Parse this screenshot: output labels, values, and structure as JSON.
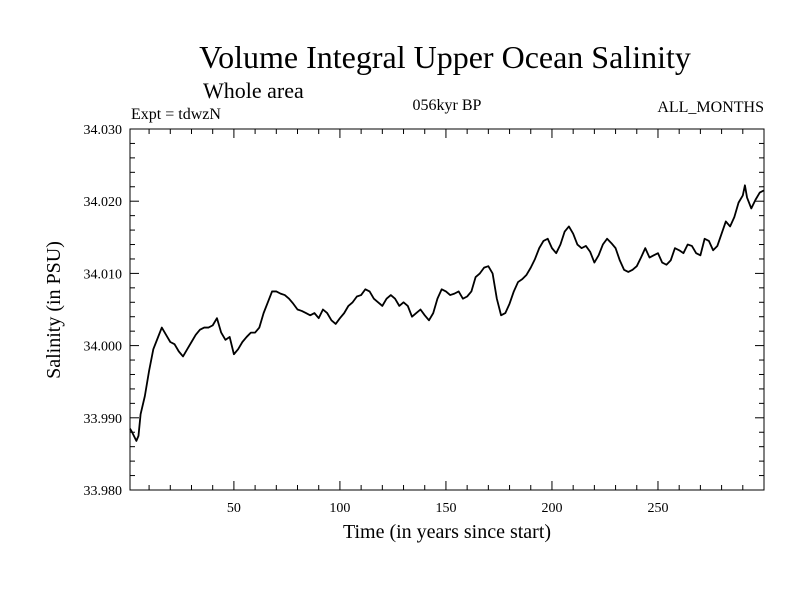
{
  "chart_data": {
    "type": "line",
    "title": "Volume Integral Upper Ocean Salinity",
    "subtitle": "Whole area",
    "annotations": {
      "left": "Expt = tdwzN",
      "center": "056kyr BP",
      "right": "ALL_MONTHS"
    },
    "xlabel": "Time (in years since start)",
    "ylabel": "Salinity (in PSU)",
    "xlim": [
      1,
      300
    ],
    "ylim": [
      33.98,
      34.03
    ],
    "xticks": [
      50,
      100,
      150,
      200,
      250
    ],
    "xtick_labels": [
      "50",
      "100",
      "150",
      "200",
      "250"
    ],
    "yticks": [
      33.98,
      33.99,
      34.0,
      34.01,
      34.02,
      34.03
    ],
    "ytick_labels": [
      "33.980",
      "33.990",
      "34.000",
      "34.010",
      "34.020",
      "34.030"
    ],
    "grid": false,
    "line_color": "#000000",
    "series": [
      {
        "x": [
          1,
          2,
          4,
          5,
          6,
          8,
          10,
          12,
          14,
          16,
          18,
          20,
          22,
          24,
          26,
          28,
          30,
          32,
          34,
          36,
          38,
          40,
          42,
          44,
          46,
          48,
          50,
          52,
          54,
          56,
          58,
          60,
          62,
          64,
          66,
          68,
          70,
          72,
          74,
          76,
          78,
          80,
          82,
          84,
          86,
          88,
          90,
          92,
          94,
          96,
          98,
          100,
          102,
          104,
          106,
          108,
          110,
          112,
          114,
          116,
          118,
          120,
          122,
          124,
          126,
          128,
          130,
          132,
          134,
          136,
          138,
          140,
          142,
          144,
          146,
          148,
          150,
          152,
          154,
          156,
          158,
          160,
          162,
          164,
          166,
          168,
          170,
          172,
          174,
          176,
          178,
          180,
          182,
          184,
          186,
          188,
          190,
          192,
          194,
          196,
          198,
          200,
          202,
          204,
          206,
          208,
          210,
          212,
          214,
          216,
          218,
          220,
          222,
          224,
          226,
          228,
          230,
          232,
          234,
          236,
          238,
          240,
          242,
          244,
          246,
          248,
          250,
          252,
          254,
          256,
          258,
          260,
          262,
          264,
          266,
          268,
          270,
          272,
          274,
          276,
          278,
          280,
          282,
          284,
          286,
          288,
          290,
          291,
          292,
          294,
          296,
          298,
          300
        ],
        "values": [
          33.9885,
          33.988,
          33.9868,
          33.9875,
          33.9905,
          33.993,
          33.9965,
          33.9995,
          34.001,
          34.0025,
          34.0015,
          34.0005,
          34.0002,
          33.9992,
          33.9985,
          33.9995,
          34.0005,
          34.0015,
          34.0022,
          34.0025,
          34.0025,
          34.0028,
          34.0038,
          34.0018,
          34.0008,
          34.0012,
          33.9988,
          33.9995,
          34.0005,
          34.0012,
          34.0018,
          34.0018,
          34.0025,
          34.0045,
          34.006,
          34.0075,
          34.0075,
          34.0072,
          34.007,
          34.0065,
          34.0058,
          34.005,
          34.0048,
          34.0045,
          34.0042,
          34.0045,
          34.0038,
          34.005,
          34.0045,
          34.0035,
          34.003,
          34.0038,
          34.0045,
          34.0055,
          34.006,
          34.0068,
          34.007,
          34.0078,
          34.0075,
          34.0065,
          34.006,
          34.0055,
          34.0065,
          34.007,
          34.0065,
          34.0055,
          34.006,
          34.0055,
          34.004,
          34.0045,
          34.005,
          34.0042,
          34.0035,
          34.0045,
          34.0065,
          34.0078,
          34.0075,
          34.007,
          34.0072,
          34.0075,
          34.0065,
          34.0068,
          34.0075,
          34.0095,
          34.01,
          34.0108,
          34.011,
          34.01,
          34.0065,
          34.0042,
          34.0045,
          34.0058,
          34.0075,
          34.0088,
          34.0092,
          34.0098,
          34.0108,
          34.012,
          34.0135,
          34.0145,
          34.0148,
          34.0135,
          34.0128,
          34.014,
          34.0158,
          34.0165,
          34.0155,
          34.014,
          34.0135,
          34.0138,
          34.013,
          34.0115,
          34.0125,
          34.014,
          34.0148,
          34.0142,
          34.0135,
          34.0118,
          34.0105,
          34.0102,
          34.0105,
          34.011,
          34.0122,
          34.0135,
          34.0122,
          34.0125,
          34.0128,
          34.0115,
          34.0112,
          34.0118,
          34.0135,
          34.0132,
          34.0128,
          34.014,
          34.0138,
          34.0128,
          34.0125,
          34.0148,
          34.0145,
          34.0132,
          34.0138,
          34.0155,
          34.0172,
          34.0165,
          34.0178,
          34.0198,
          34.0208,
          34.0222,
          34.0205,
          34.019,
          34.0202,
          34.0212,
          34.0215
        ]
      }
    ]
  }
}
